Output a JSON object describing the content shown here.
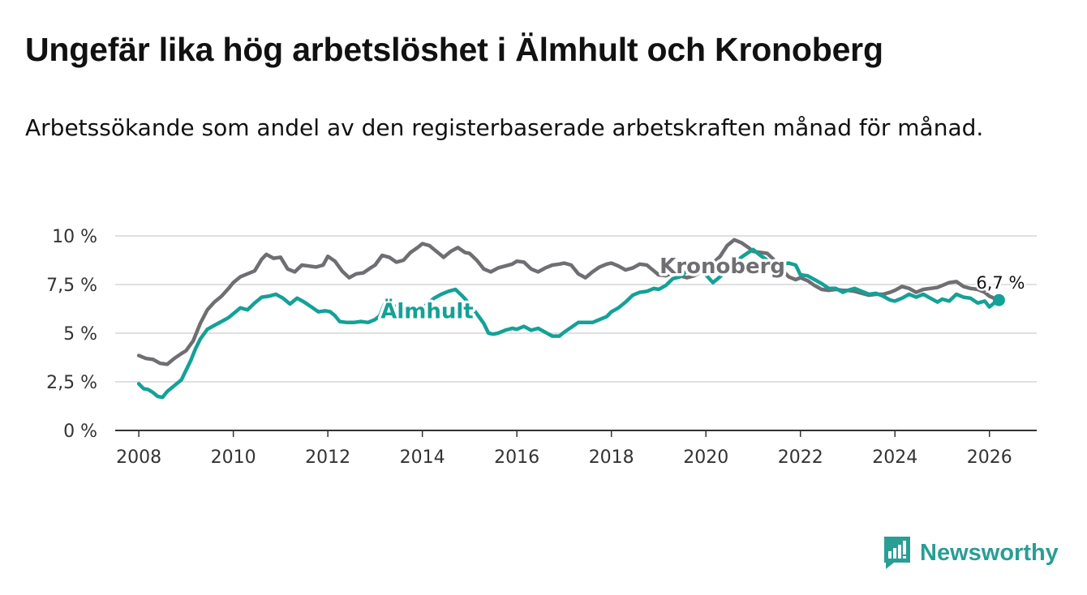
{
  "title": "Ungefär lika hög arbetslöshet i Älmhult och Kronoberg",
  "subtitle": "Arbetssökande som andel av den registerbaserade arbetskraften månad för månad.",
  "brand": {
    "name": "Newsworthy",
    "color": "#2a9d95"
  },
  "colors": {
    "almhult": "#14a197",
    "kronoberg": "#6f6e72",
    "grid": "#d6d6d6",
    "axis": "#333333"
  },
  "chart_data": {
    "type": "line",
    "title": "Ungefär lika hög arbetslöshet i Älmhult och Kronoberg",
    "xlabel": "",
    "ylabel": "",
    "ylim": [
      0,
      10
    ],
    "xlim": [
      2007.5,
      2027.0
    ],
    "x_ticks": [
      2008,
      2010,
      2012,
      2014,
      2016,
      2018,
      2020,
      2022,
      2024,
      2026
    ],
    "x_tick_labels": [
      "2008",
      "2010",
      "2012",
      "2014",
      "2016",
      "2018",
      "2020",
      "2022",
      "2024",
      "2026"
    ],
    "y_ticks": [
      0,
      2.5,
      5,
      7.5,
      10
    ],
    "y_tick_labels": [
      "0 %",
      "2,5 %",
      "5 %",
      "7,5 %",
      "10 %"
    ],
    "grid": true,
    "end_label": "6,7 %",
    "series": [
      {
        "name": "Kronoberg",
        "key": "kronoberg",
        "label_at": [
          2020.35,
          8.45
        ],
        "points": [
          [
            2008.0,
            3.85
          ],
          [
            2008.15,
            3.7
          ],
          [
            2008.3,
            3.65
          ],
          [
            2008.45,
            3.45
          ],
          [
            2008.6,
            3.4
          ],
          [
            2008.75,
            3.7
          ],
          [
            2008.9,
            3.95
          ],
          [
            2009.0,
            4.1
          ],
          [
            2009.15,
            4.6
          ],
          [
            2009.3,
            5.5
          ],
          [
            2009.45,
            6.2
          ],
          [
            2009.6,
            6.6
          ],
          [
            2009.75,
            6.9
          ],
          [
            2009.9,
            7.3
          ],
          [
            2010.0,
            7.6
          ],
          [
            2010.15,
            7.9
          ],
          [
            2010.3,
            8.05
          ],
          [
            2010.45,
            8.2
          ],
          [
            2010.6,
            8.8
          ],
          [
            2010.7,
            9.05
          ],
          [
            2010.85,
            8.85
          ],
          [
            2011.0,
            8.9
          ],
          [
            2011.15,
            8.3
          ],
          [
            2011.3,
            8.15
          ],
          [
            2011.45,
            8.5
          ],
          [
            2011.6,
            8.45
          ],
          [
            2011.75,
            8.4
          ],
          [
            2011.9,
            8.5
          ],
          [
            2012.0,
            8.95
          ],
          [
            2012.15,
            8.7
          ],
          [
            2012.3,
            8.2
          ],
          [
            2012.45,
            7.85
          ],
          [
            2012.6,
            8.05
          ],
          [
            2012.75,
            8.1
          ],
          [
            2012.9,
            8.35
          ],
          [
            2013.0,
            8.5
          ],
          [
            2013.15,
            9.0
          ],
          [
            2013.3,
            8.9
          ],
          [
            2013.45,
            8.65
          ],
          [
            2013.6,
            8.75
          ],
          [
            2013.75,
            9.15
          ],
          [
            2013.9,
            9.4
          ],
          [
            2014.0,
            9.6
          ],
          [
            2014.15,
            9.5
          ],
          [
            2014.3,
            9.2
          ],
          [
            2014.45,
            8.9
          ],
          [
            2014.6,
            9.2
          ],
          [
            2014.75,
            9.4
          ],
          [
            2014.9,
            9.15
          ],
          [
            2015.0,
            9.1
          ],
          [
            2015.15,
            8.75
          ],
          [
            2015.3,
            8.3
          ],
          [
            2015.45,
            8.15
          ],
          [
            2015.6,
            8.35
          ],
          [
            2015.75,
            8.45
          ],
          [
            2015.9,
            8.55
          ],
          [
            2016.0,
            8.7
          ],
          [
            2016.15,
            8.65
          ],
          [
            2016.3,
            8.3
          ],
          [
            2016.45,
            8.15
          ],
          [
            2016.6,
            8.35
          ],
          [
            2016.75,
            8.5
          ],
          [
            2016.9,
            8.55
          ],
          [
            2017.0,
            8.6
          ],
          [
            2017.15,
            8.5
          ],
          [
            2017.3,
            8.05
          ],
          [
            2017.45,
            7.85
          ],
          [
            2017.6,
            8.15
          ],
          [
            2017.75,
            8.4
          ],
          [
            2017.9,
            8.55
          ],
          [
            2018.0,
            8.6
          ],
          [
            2018.15,
            8.45
          ],
          [
            2018.3,
            8.25
          ],
          [
            2018.45,
            8.35
          ],
          [
            2018.6,
            8.55
          ],
          [
            2018.75,
            8.5
          ],
          [
            2018.9,
            8.2
          ],
          [
            2019.0,
            8.0
          ],
          [
            2019.15,
            7.95
          ],
          [
            2019.3,
            8.1
          ],
          [
            2019.45,
            7.95
          ],
          [
            2019.6,
            7.85
          ],
          [
            2019.75,
            7.95
          ],
          [
            2019.9,
            8.15
          ],
          [
            2020.0,
            8.3
          ],
          [
            2020.15,
            8.6
          ],
          [
            2020.3,
            8.95
          ],
          [
            2020.45,
            9.5
          ],
          [
            2020.6,
            9.8
          ],
          [
            2020.75,
            9.65
          ],
          [
            2020.9,
            9.4
          ],
          [
            2021.0,
            9.2
          ],
          [
            2021.15,
            9.15
          ],
          [
            2021.3,
            9.1
          ],
          [
            2021.45,
            8.75
          ],
          [
            2021.6,
            8.3
          ],
          [
            2021.75,
            7.9
          ],
          [
            2021.9,
            7.75
          ],
          [
            2022.0,
            7.85
          ],
          [
            2022.15,
            7.7
          ],
          [
            2022.3,
            7.45
          ],
          [
            2022.45,
            7.25
          ],
          [
            2022.6,
            7.2
          ],
          [
            2022.75,
            7.25
          ],
          [
            2022.9,
            7.2
          ],
          [
            2023.0,
            7.2
          ],
          [
            2023.15,
            7.15
          ],
          [
            2023.3,
            7.05
          ],
          [
            2023.45,
            6.95
          ],
          [
            2023.6,
            7.0
          ],
          [
            2023.75,
            7.0
          ],
          [
            2023.9,
            7.1
          ],
          [
            2024.0,
            7.2
          ],
          [
            2024.15,
            7.4
          ],
          [
            2024.3,
            7.3
          ],
          [
            2024.45,
            7.1
          ],
          [
            2024.6,
            7.25
          ],
          [
            2024.75,
            7.3
          ],
          [
            2024.9,
            7.35
          ],
          [
            2025.0,
            7.45
          ],
          [
            2025.15,
            7.6
          ],
          [
            2025.3,
            7.65
          ],
          [
            2025.45,
            7.4
          ],
          [
            2025.6,
            7.3
          ],
          [
            2025.75,
            7.25
          ],
          [
            2025.9,
            7.1
          ],
          [
            2026.0,
            6.9
          ],
          [
            2026.1,
            6.8
          ],
          [
            2026.2,
            6.7
          ]
        ]
      },
      {
        "name": "Älmhult",
        "key": "almhult",
        "label_at": [
          2014.1,
          6.15
        ],
        "points": [
          [
            2008.0,
            2.4
          ],
          [
            2008.1,
            2.15
          ],
          [
            2008.2,
            2.1
          ],
          [
            2008.3,
            1.95
          ],
          [
            2008.4,
            1.75
          ],
          [
            2008.5,
            1.7
          ],
          [
            2008.6,
            2.0
          ],
          [
            2008.75,
            2.3
          ],
          [
            2008.9,
            2.6
          ],
          [
            2009.0,
            3.1
          ],
          [
            2009.1,
            3.6
          ],
          [
            2009.2,
            4.2
          ],
          [
            2009.3,
            4.7
          ],
          [
            2009.45,
            5.2
          ],
          [
            2009.6,
            5.4
          ],
          [
            2009.75,
            5.6
          ],
          [
            2009.9,
            5.8
          ],
          [
            2010.0,
            6.0
          ],
          [
            2010.15,
            6.3
          ],
          [
            2010.3,
            6.2
          ],
          [
            2010.45,
            6.55
          ],
          [
            2010.6,
            6.85
          ],
          [
            2010.75,
            6.9
          ],
          [
            2010.9,
            7.0
          ],
          [
            2011.05,
            6.8
          ],
          [
            2011.2,
            6.5
          ],
          [
            2011.35,
            6.8
          ],
          [
            2011.5,
            6.6
          ],
          [
            2011.65,
            6.35
          ],
          [
            2011.8,
            6.1
          ],
          [
            2011.95,
            6.15
          ],
          [
            2012.05,
            6.1
          ],
          [
            2012.15,
            5.9
          ],
          [
            2012.25,
            5.6
          ],
          [
            2012.4,
            5.55
          ],
          [
            2012.55,
            5.55
          ],
          [
            2012.7,
            5.6
          ],
          [
            2012.85,
            5.55
          ],
          [
            2013.0,
            5.7
          ],
          [
            2013.1,
            5.9
          ],
          [
            2013.2,
            6.5
          ],
          [
            2013.35,
            6.4
          ],
          [
            2013.5,
            6.35
          ],
          [
            2013.65,
            6.1
          ],
          [
            2013.8,
            6.0
          ],
          [
            2013.95,
            6.15
          ],
          [
            2014.1,
            6.5
          ],
          [
            2014.25,
            6.8
          ],
          [
            2014.4,
            7.0
          ],
          [
            2014.55,
            7.15
          ],
          [
            2014.7,
            7.25
          ],
          [
            2014.85,
            6.9
          ],
          [
            2015.0,
            6.5
          ],
          [
            2015.15,
            6.0
          ],
          [
            2015.3,
            5.5
          ],
          [
            2015.4,
            5.0
          ],
          [
            2015.5,
            4.95
          ],
          [
            2015.6,
            5.0
          ],
          [
            2015.75,
            5.15
          ],
          [
            2015.9,
            5.25
          ],
          [
            2016.0,
            5.2
          ],
          [
            2016.15,
            5.35
          ],
          [
            2016.3,
            5.15
          ],
          [
            2016.45,
            5.25
          ],
          [
            2016.6,
            5.05
          ],
          [
            2016.75,
            4.85
          ],
          [
            2016.9,
            4.85
          ],
          [
            2017.0,
            5.05
          ],
          [
            2017.15,
            5.3
          ],
          [
            2017.3,
            5.55
          ],
          [
            2017.45,
            5.55
          ],
          [
            2017.6,
            5.55
          ],
          [
            2017.75,
            5.7
          ],
          [
            2017.9,
            5.85
          ],
          [
            2018.0,
            6.1
          ],
          [
            2018.15,
            6.3
          ],
          [
            2018.3,
            6.6
          ],
          [
            2018.45,
            6.95
          ],
          [
            2018.6,
            7.1
          ],
          [
            2018.75,
            7.15
          ],
          [
            2018.9,
            7.3
          ],
          [
            2019.0,
            7.25
          ],
          [
            2019.15,
            7.45
          ],
          [
            2019.3,
            7.8
          ],
          [
            2019.45,
            7.9
          ],
          [
            2019.6,
            8.2
          ],
          [
            2019.75,
            8.25
          ],
          [
            2019.9,
            8.2
          ],
          [
            2020.0,
            8.0
          ],
          [
            2020.15,
            7.6
          ],
          [
            2020.3,
            7.9
          ],
          [
            2020.45,
            8.3
          ],
          [
            2020.6,
            8.6
          ],
          [
            2020.75,
            8.9
          ],
          [
            2020.9,
            9.15
          ],
          [
            2021.0,
            9.3
          ],
          [
            2021.15,
            9.0
          ],
          [
            2021.3,
            8.75
          ],
          [
            2021.45,
            8.5
          ],
          [
            2021.6,
            8.55
          ],
          [
            2021.75,
            8.6
          ],
          [
            2021.9,
            8.5
          ],
          [
            2022.0,
            8.0
          ],
          [
            2022.15,
            7.95
          ],
          [
            2022.3,
            7.75
          ],
          [
            2022.45,
            7.55
          ],
          [
            2022.6,
            7.3
          ],
          [
            2022.75,
            7.3
          ],
          [
            2022.9,
            7.1
          ],
          [
            2023.0,
            7.2
          ],
          [
            2023.15,
            7.3
          ],
          [
            2023.3,
            7.15
          ],
          [
            2023.45,
            7.0
          ],
          [
            2023.6,
            7.05
          ],
          [
            2023.75,
            6.9
          ],
          [
            2023.9,
            6.7
          ],
          [
            2024.0,
            6.65
          ],
          [
            2024.15,
            6.8
          ],
          [
            2024.3,
            7.0
          ],
          [
            2024.45,
            6.85
          ],
          [
            2024.6,
            7.0
          ],
          [
            2024.75,
            6.8
          ],
          [
            2024.9,
            6.6
          ],
          [
            2025.0,
            6.75
          ],
          [
            2025.15,
            6.65
          ],
          [
            2025.3,
            7.0
          ],
          [
            2025.45,
            6.85
          ],
          [
            2025.6,
            6.8
          ],
          [
            2025.75,
            6.55
          ],
          [
            2025.9,
            6.65
          ],
          [
            2026.0,
            6.35
          ],
          [
            2026.1,
            6.55
          ],
          [
            2026.2,
            6.7
          ]
        ]
      }
    ]
  }
}
